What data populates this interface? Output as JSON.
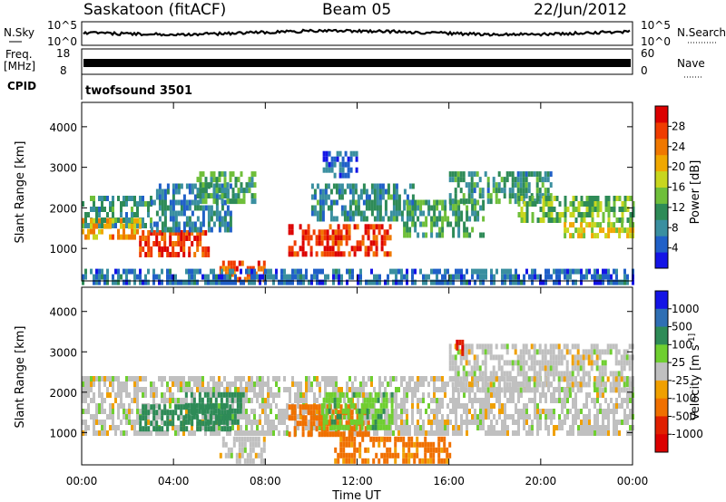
{
  "header": {
    "station": "Saskatoon (fitACF)",
    "beam": "Beam 05",
    "date": "22/Jun/2012"
  },
  "strips": {
    "nsky": {
      "label": "N.Sky",
      "tick_top": "10^5",
      "tick_bottom": "10^0",
      "right_label": "N.Search",
      "right_tick_top": "10^5",
      "right_tick_bottom": "10^0"
    },
    "freq": {
      "label_line1": "Freq.",
      "label_line2": "[MHz]",
      "tick_top": "18",
      "tick_bottom": "8",
      "right_label": "Nave",
      "right_tick_top": "60",
      "right_tick_bottom": "0"
    },
    "cpid": {
      "label": "CPID",
      "text": "twofsound 3501"
    }
  },
  "chart_data": [
    {
      "type": "heatmap",
      "title": "",
      "xlabel": "",
      "ylabel": "Slant Range [km]",
      "x_ticks": [
        "00:00",
        "04:00",
        "08:00",
        "12:00",
        "16:00",
        "20:00",
        "00:00"
      ],
      "y_ticks": [
        "1000",
        "2000",
        "3000",
        "4000"
      ],
      "ylim": [
        200,
        4600
      ],
      "colorbar_label": "Power [dB]",
      "colorbar_ticks": [
        "4",
        "8",
        "12",
        "16",
        "20",
        "24",
        "28"
      ],
      "colorbar_colors": [
        "#1414e6",
        "#2060c8",
        "#3a8fa0",
        "#2e8b57",
        "#6fbf3a",
        "#c8d61e",
        "#f0a800",
        "#f07800",
        "#f03c00",
        "#dc0000"
      ],
      "bands": [
        {
          "x0": 0,
          "x1": 3.0,
          "r0": 1500,
          "r1": 2300,
          "value": 10
        },
        {
          "x0": 0,
          "x1": 2.5,
          "r0": 1300,
          "r1": 1750,
          "value": 22
        },
        {
          "x0": 2.5,
          "x1": 5.5,
          "r0": 900,
          "r1": 1450,
          "value": 27
        },
        {
          "x0": 3.0,
          "x1": 6.5,
          "r0": 1500,
          "r1": 2600,
          "value": 8
        },
        {
          "x0": 5.0,
          "x1": 7.5,
          "r0": 2200,
          "r1": 2900,
          "value": 12
        },
        {
          "x0": 6.0,
          "x1": 8.0,
          "r0": 200,
          "r1": 700,
          "value": 26
        },
        {
          "x0": 9.0,
          "x1": 13.5,
          "r0": 800,
          "r1": 1600,
          "value": 28
        },
        {
          "x0": 10.0,
          "x1": 14.5,
          "r0": 1700,
          "r1": 2600,
          "value": 9
        },
        {
          "x0": 10.5,
          "x1": 12.0,
          "r0": 2800,
          "r1": 3400,
          "value": 5
        },
        {
          "x0": 14.0,
          "x1": 17.5,
          "r0": 1300,
          "r1": 2200,
          "value": 11
        },
        {
          "x0": 16.0,
          "x1": 20.5,
          "r0": 2100,
          "r1": 2900,
          "value": 10
        },
        {
          "x0": 19.0,
          "x1": 24.0,
          "r0": 1700,
          "r1": 2300,
          "value": 14
        },
        {
          "x0": 21.0,
          "x1": 24.0,
          "r0": 1300,
          "r1": 1650,
          "value": 18
        },
        {
          "x0": 0,
          "x1": 24.0,
          "r0": 200,
          "r1": 500,
          "value": 6
        }
      ]
    },
    {
      "type": "heatmap",
      "title": "",
      "xlabel": "Time UT",
      "ylabel": "Slant Range [km]",
      "x_ticks": [
        "00:00",
        "04:00",
        "08:00",
        "12:00",
        "16:00",
        "20:00",
        "00:00"
      ],
      "y_ticks": [
        "1000",
        "2000",
        "3000",
        "4000"
      ],
      "ylim": [
        200,
        4600
      ],
      "colorbar_label": "Velocity [m s^-1]",
      "colorbar_ticks": [
        "1000",
        "500",
        "100",
        "25",
        "-25",
        "-100",
        "-500",
        "-1000"
      ],
      "colorbar_colors": [
        "#1414e6",
        "#2f6fb4",
        "#2e8b57",
        "#6fcf30",
        "#c0c0c0",
        "#f0a000",
        "#f07000",
        "#e02000",
        "#dc0000"
      ],
      "bands": [
        {
          "x0": 0,
          "x1": 24.0,
          "r0": 1000,
          "r1": 2400,
          "value": 0
        },
        {
          "x0": 2.5,
          "x1": 6.5,
          "r0": 1100,
          "r1": 1700,
          "value": 300
        },
        {
          "x0": 4.5,
          "x1": 7.0,
          "r0": 1200,
          "r1": 2000,
          "value": 150
        },
        {
          "x0": 9.0,
          "x1": 12.5,
          "r0": 900,
          "r1": 1700,
          "value": -250
        },
        {
          "x0": 10.5,
          "x1": 13.5,
          "r0": 1100,
          "r1": 2000,
          "value": 80
        },
        {
          "x0": 11.0,
          "x1": 16.0,
          "r0": 300,
          "r1": 900,
          "value": -120
        },
        {
          "x0": 16.0,
          "x1": 24.0,
          "r0": 2000,
          "r1": 3200,
          "value": 0
        },
        {
          "x0": 16.3,
          "x1": 16.6,
          "r0": 2900,
          "r1": 3300,
          "value": -900
        },
        {
          "x0": 6.0,
          "x1": 8.0,
          "r0": 300,
          "r1": 900,
          "value": 0
        }
      ]
    }
  ]
}
